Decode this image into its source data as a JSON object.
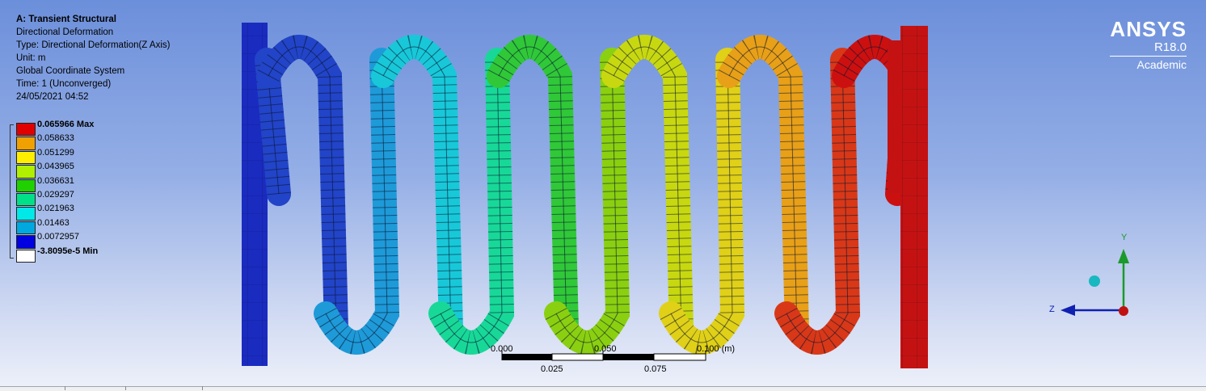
{
  "header": {
    "title": "A: Transient Structural",
    "result": "Directional Deformation",
    "type": "Type: Directional Deformation(Z Axis)",
    "unit": "Unit: m",
    "coordinate_system": "Global Coordinate System",
    "time": "Time: 1 (Unconverged)",
    "date": "24/05/2021 04:52"
  },
  "legend": {
    "max_label": "0.065966 Max",
    "min_label": "-3.8095e-5 Min",
    "intermediate": [
      "0.058633",
      "0.051299",
      "0.043965",
      "0.036631",
      "0.029297",
      "0.021963",
      "0.01463",
      "0.0072957"
    ],
    "colors": [
      "#e00000",
      "#f0a000",
      "#ffee00",
      "#b0f000",
      "#20d000",
      "#00e088",
      "#00e8e8",
      "#00a8e0",
      "#0000e0",
      "#ffffff"
    ]
  },
  "brand": {
    "name": "ANSYS",
    "version": "R18.0",
    "edition": "Academic"
  },
  "scale": {
    "top_labels": [
      "0.000",
      "0.050",
      "0.100 (m)"
    ],
    "bottom_labels": [
      "0.025",
      "0.075"
    ]
  },
  "triad": {
    "y_label": "Y",
    "z_label": "Z"
  },
  "model": {
    "coil_colors": [
      "#2244c8",
      "#1e9ad8",
      "#18c8d8",
      "#18d898",
      "#30c838",
      "#8ad010",
      "#c8d810",
      "#e0d018",
      "#e8a018",
      "#d83818",
      "#cc1010"
    ],
    "left_plate_color": "#1a2bc0",
    "right_plate_color": "#c41212"
  }
}
